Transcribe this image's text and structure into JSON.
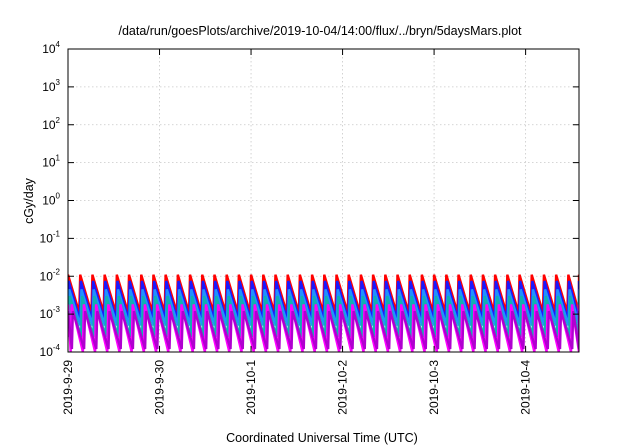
{
  "chart_data": {
    "type": "line",
    "title": "/data/run/goesPlots/archive/2019-10-04/14:00/flux/../bryn/5daysMars.plot",
    "xlabel": "Coordinated Universal Time (UTC)",
    "ylabel": "cGy/day",
    "xlim": [
      "2019-09-29T00:00",
      "2019-10-04T14:00"
    ],
    "ylim": [
      0.0001,
      10000
    ],
    "yscale": "log",
    "grid": true,
    "x_ticks": [
      "2019-9-29",
      "2019-9-30",
      "2019-10-1",
      "2019-10-2",
      "2019-10-3",
      "2019-10-4"
    ],
    "y_ticks": [
      {
        "mantissa": "10",
        "exponent": "-4"
      },
      {
        "mantissa": "10",
        "exponent": "-3"
      },
      {
        "mantissa": "10",
        "exponent": "-2"
      },
      {
        "mantissa": "10",
        "exponent": "-1"
      },
      {
        "mantissa": "10",
        "exponent": "0"
      },
      {
        "mantissa": "10",
        "exponent": "1"
      },
      {
        "mantissa": "10",
        "exponent": "2"
      },
      {
        "mantissa": "10",
        "exponent": "3"
      },
      {
        "mantissa": "10",
        "exponent": "4"
      }
    ],
    "sawtooth_period_hours": 3.2,
    "series": [
      {
        "color": "#ff0000",
        "peak": 0.011,
        "trough": 0.0011,
        "phase": 0.0
      },
      {
        "color": "#1a1aff",
        "peak": 0.0075,
        "trough": 0.0007,
        "phase": 0.05
      },
      {
        "color": "#2090ff",
        "peak": 0.0045,
        "trough": 0.0005,
        "phase": 0.1
      },
      {
        "color": "#10b0b0",
        "peak": 0.003,
        "trough": 0.00025,
        "phase": 0.15
      },
      {
        "color": "#ff00ff",
        "peak": 0.0018,
        "trough": 0.0001,
        "phase": 0.3
      },
      {
        "color": "#b000d0",
        "peak": 0.0012,
        "trough": 0.00012,
        "phase": 0.4
      }
    ]
  }
}
